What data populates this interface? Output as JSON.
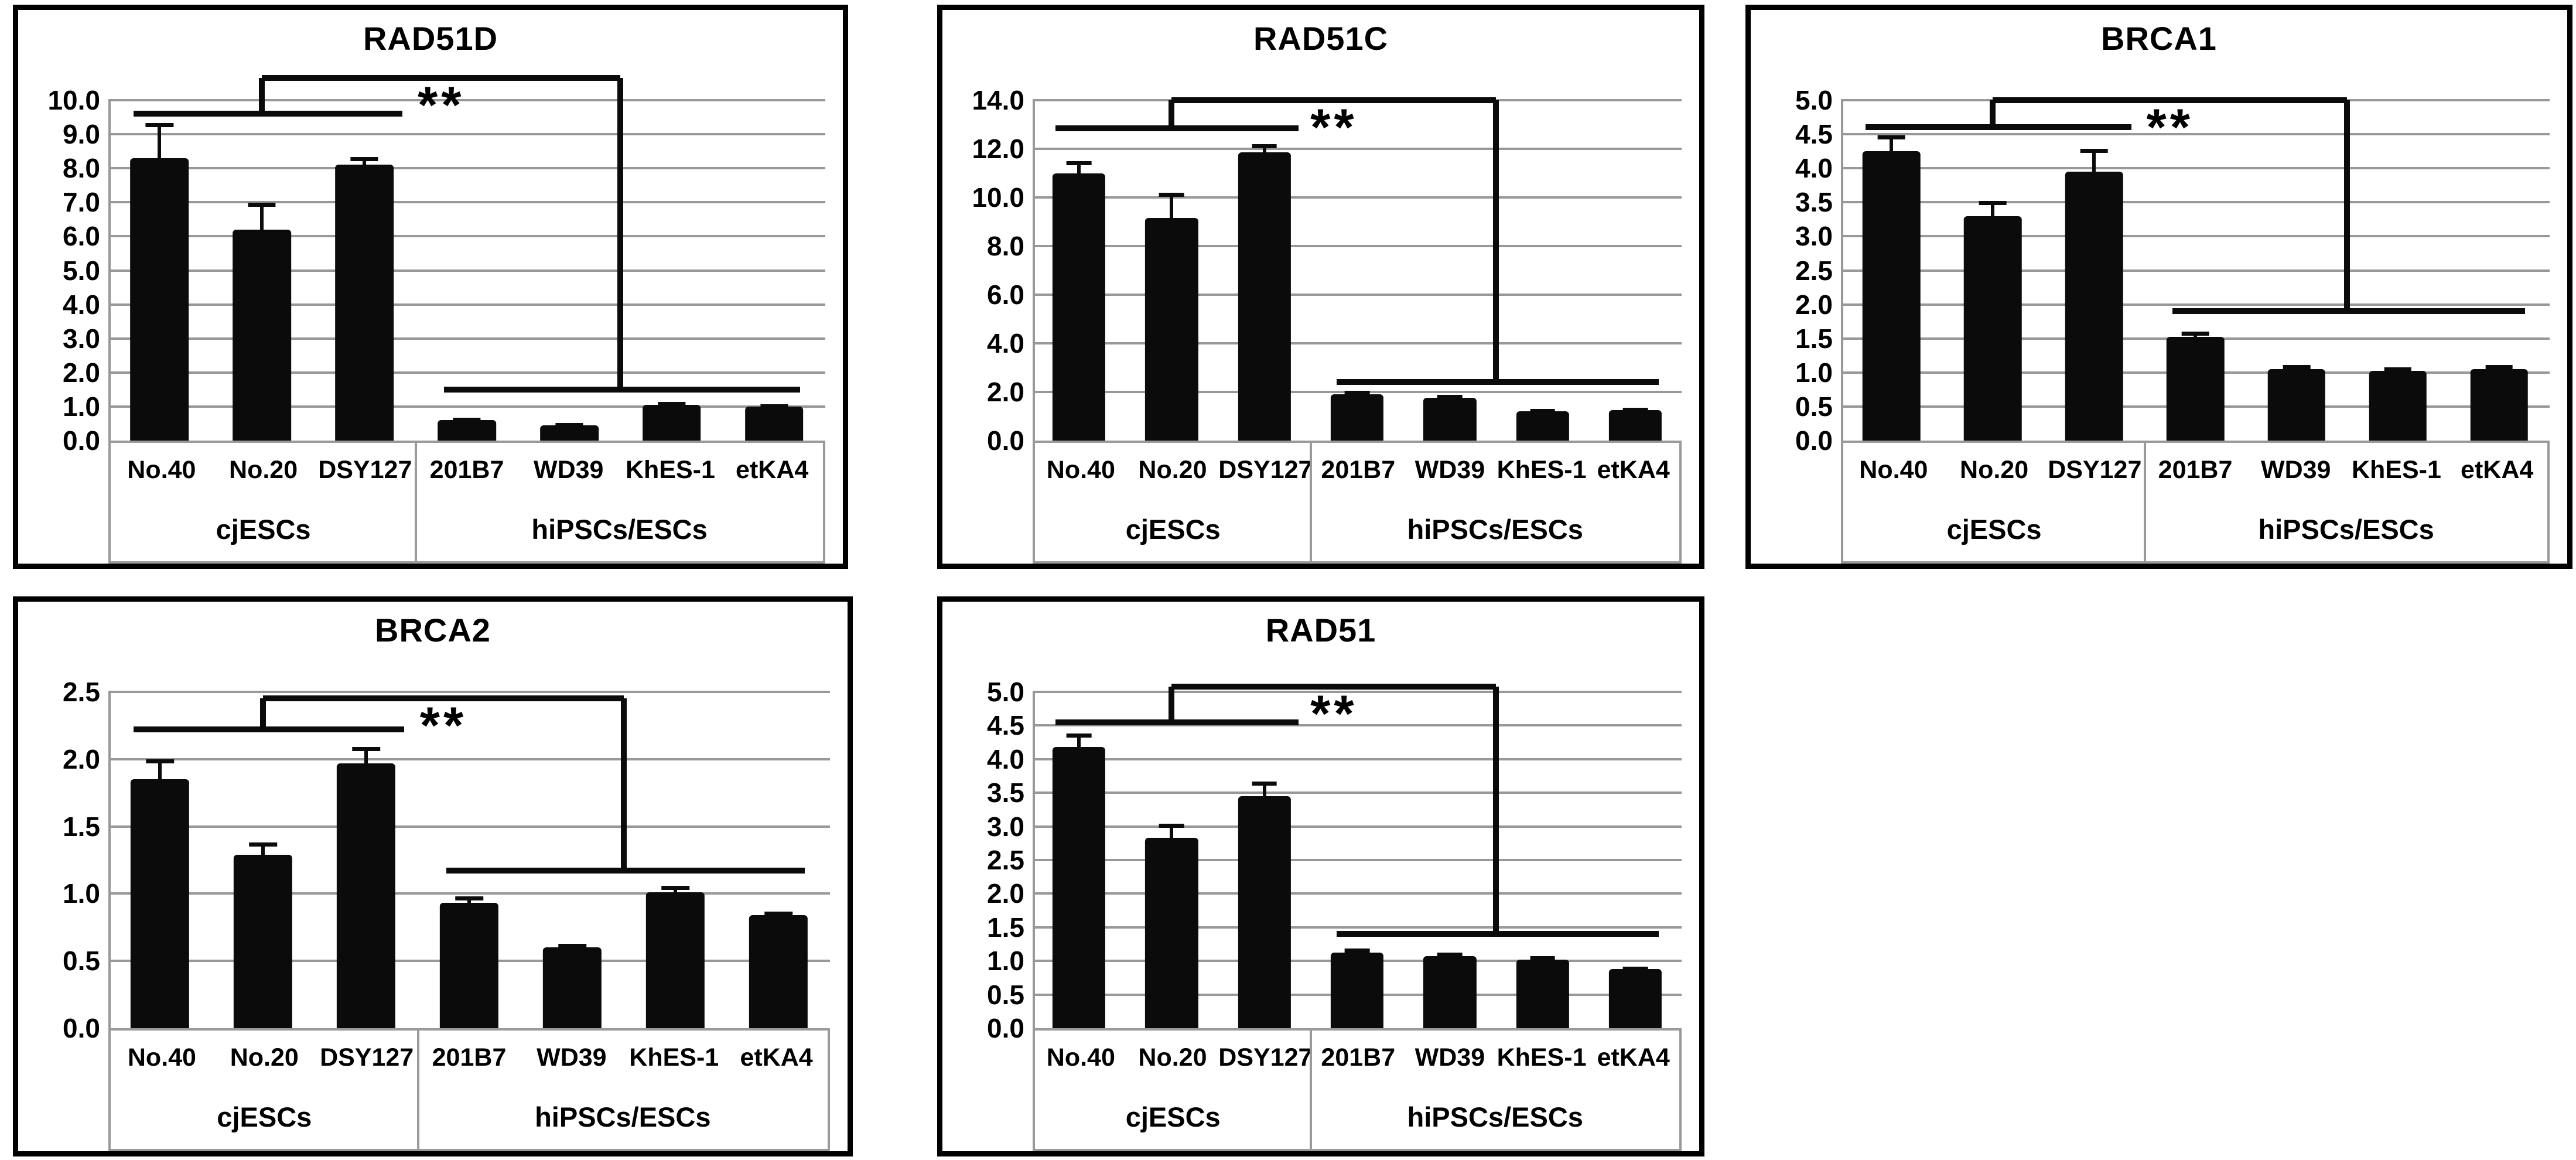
{
  "figure": {
    "background_color": "#ffffff",
    "panel_border_color": "#000000",
    "bar_color": "#0b0b0b",
    "grid_color": "#989898",
    "label_table_border_color": "#9a9a9a",
    "text_color": "#000000"
  },
  "categories": [
    "No.40",
    "No.20",
    "DSY127",
    "201B7",
    "WD39",
    "KhES-1",
    "etKA4"
  ],
  "groups": [
    {
      "label": "cjESCs",
      "span": 3
    },
    {
      "label": "hiPSCs/ESCs",
      "span": 4
    }
  ],
  "chart_data": [
    {
      "type": "bar",
      "title": "RAD51D",
      "xlabel": "",
      "ylabel": "",
      "ylim": [
        0,
        10
      ],
      "ytick_step": 1.0,
      "ytick_labels": [
        "10.0",
        "9.0",
        "8.0",
        "7.0",
        "6.0",
        "5.0",
        "4.0",
        "3.0",
        "2.0",
        "1.0",
        "0.0"
      ],
      "grid": true,
      "categories": [
        "No.40",
        "No.20",
        "DSY127",
        "201B7",
        "WD39",
        "KhES-1",
        "etKA4"
      ],
      "group_labels": [
        "cjESCs",
        "hiPSCs/ESCs"
      ],
      "values": [
        8.3,
        6.2,
        8.1,
        0.6,
        0.45,
        1.05,
        1.0
      ],
      "errors": [
        1.0,
        0.75,
        0.2,
        0.04,
        0.03,
        0.05,
        0.04
      ],
      "significance": {
        "label": "**",
        "group1_line_y": 9.6,
        "group2_line_y": 1.5,
        "bracket_top_y": 10.65
      }
    },
    {
      "type": "bar",
      "title": "RAD51C",
      "xlabel": "",
      "ylabel": "",
      "ylim": [
        0,
        14
      ],
      "ytick_step": 2.0,
      "ytick_labels": [
        "14.0",
        "12.0",
        "10.0",
        "8.0",
        "6.0",
        "4.0",
        "2.0",
        "0.0"
      ],
      "grid": true,
      "categories": [
        "No.40",
        "No.20",
        "DSY127",
        "201B7",
        "WD39",
        "KhES-1",
        "etKA4"
      ],
      "group_labels": [
        "cjESCs",
        "hiPSCs/ESCs"
      ],
      "values": [
        11.0,
        9.15,
        11.85,
        1.9,
        1.75,
        1.2,
        1.25
      ],
      "errors": [
        0.45,
        1.0,
        0.3,
        0.1,
        0.07,
        0.05,
        0.05
      ],
      "significance": {
        "label": "**",
        "group1_line_y": 12.85,
        "group2_line_y": 2.4,
        "bracket_top_y": 14.0
      }
    },
    {
      "type": "bar",
      "title": "BRCA1",
      "xlabel": "",
      "ylabel": "",
      "ylim": [
        0,
        5
      ],
      "ytick_step": 0.5,
      "ytick_labels": [
        "5.0",
        "4.5",
        "4.0",
        "3.5",
        "3.0",
        "2.5",
        "2.0",
        "1.5",
        "1.0",
        "0.5",
        "0.0"
      ],
      "grid": true,
      "categories": [
        "No.40",
        "No.20",
        "DSY127",
        "201B7",
        "WD39",
        "KhES-1",
        "etKA4"
      ],
      "group_labels": [
        "cjESCs",
        "hiPSCs/ESCs"
      ],
      "values": [
        4.25,
        3.3,
        3.95,
        1.52,
        1.05,
        1.02,
        1.05
      ],
      "errors": [
        0.22,
        0.2,
        0.32,
        0.06,
        0.04,
        0.04,
        0.04
      ],
      "significance": {
        "label": "**",
        "group1_line_y": 4.6,
        "group2_line_y": 1.9,
        "bracket_top_y": 5.0
      }
    },
    {
      "type": "bar",
      "title": "BRCA2",
      "xlabel": "",
      "ylabel": "",
      "ylim": [
        0,
        2.5
      ],
      "ytick_step": 0.5,
      "ytick_labels": [
        "2.5",
        "2.0",
        "1.5",
        "1.0",
        "0.5",
        "0.0"
      ],
      "grid": true,
      "categories": [
        "No.40",
        "No.20",
        "DSY127",
        "201B7",
        "WD39",
        "KhES-1",
        "etKA4"
      ],
      "group_labels": [
        "cjESCs",
        "hiPSCs/ESCs"
      ],
      "values": [
        1.85,
        1.29,
        1.97,
        0.93,
        0.6,
        1.01,
        0.84
      ],
      "errors": [
        0.14,
        0.08,
        0.11,
        0.04,
        0.02,
        0.04,
        0.02
      ],
      "significance": {
        "label": "**",
        "group1_line_y": 2.22,
        "group2_line_y": 1.17,
        "bracket_top_y": 2.45
      }
    },
    {
      "type": "bar",
      "title": "RAD51",
      "xlabel": "",
      "ylabel": "",
      "ylim": [
        0,
        5
      ],
      "ytick_step": 0.5,
      "ytick_labels": [
        "5.0",
        "4.5",
        "4.0",
        "3.5",
        "3.0",
        "2.5",
        "2.0",
        "1.5",
        "1.0",
        "0.5",
        "0.0"
      ],
      "grid": true,
      "categories": [
        "No.40",
        "No.20",
        "DSY127",
        "201B7",
        "WD39",
        "KhES-1",
        "etKA4"
      ],
      "group_labels": [
        "cjESCs",
        "hiPSCs/ESCs"
      ],
      "values": [
        4.18,
        2.83,
        3.45,
        1.12,
        1.07,
        1.02,
        0.88
      ],
      "errors": [
        0.18,
        0.19,
        0.2,
        0.05,
        0.04,
        0.03,
        0.02
      ],
      "significance": {
        "label": "**",
        "group1_line_y": 4.55,
        "group2_line_y": 1.4,
        "bracket_top_y": 5.08
      }
    }
  ]
}
